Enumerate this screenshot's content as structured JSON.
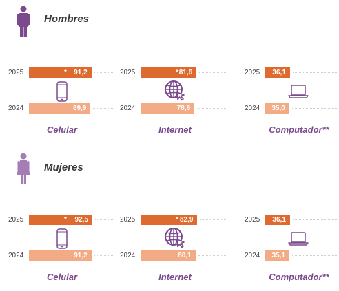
{
  "colors": {
    "bar_2025": "#df6a30",
    "bar_2024": "#f3ab86",
    "accent": "#7b4a8e",
    "person_male": "#7b4a8e",
    "person_female": "#a47cb6"
  },
  "icons": {
    "male": "male-person-icon",
    "female": "female-person-icon",
    "celular": "smartphone-icon",
    "internet": "globe-cursor-icon",
    "computador": "laptop-icon"
  },
  "chart_data": [
    {
      "type": "bar",
      "title": "Hombres",
      "categories": [
        "Celular",
        "Internet",
        "Computador**"
      ],
      "series": [
        {
          "name": "2025",
          "values": [
            91.2,
            81.6,
            36.1
          ],
          "labels": [
            "91,2",
            "81,6",
            "36,1"
          ],
          "marks": [
            "*",
            "*",
            ""
          ]
        },
        {
          "name": "2024",
          "values": [
            89.9,
            78.6,
            35.0
          ],
          "labels": [
            "89,9",
            "78,6",
            "35,0"
          ]
        }
      ]
    },
    {
      "type": "bar",
      "title": "Mujeres",
      "categories": [
        "Celular",
        "Internet",
        "Computador**"
      ],
      "series": [
        {
          "name": "2025",
          "values": [
            92.5,
            82.9,
            36.1
          ],
          "labels": [
            "92,5",
            "82,9",
            "36,1"
          ],
          "marks": [
            "*",
            "*",
            ""
          ]
        },
        {
          "name": "2024",
          "values": [
            91.2,
            80.1,
            35.1
          ],
          "labels": [
            "91,2",
            "80,1",
            "35,1"
          ]
        }
      ]
    }
  ]
}
